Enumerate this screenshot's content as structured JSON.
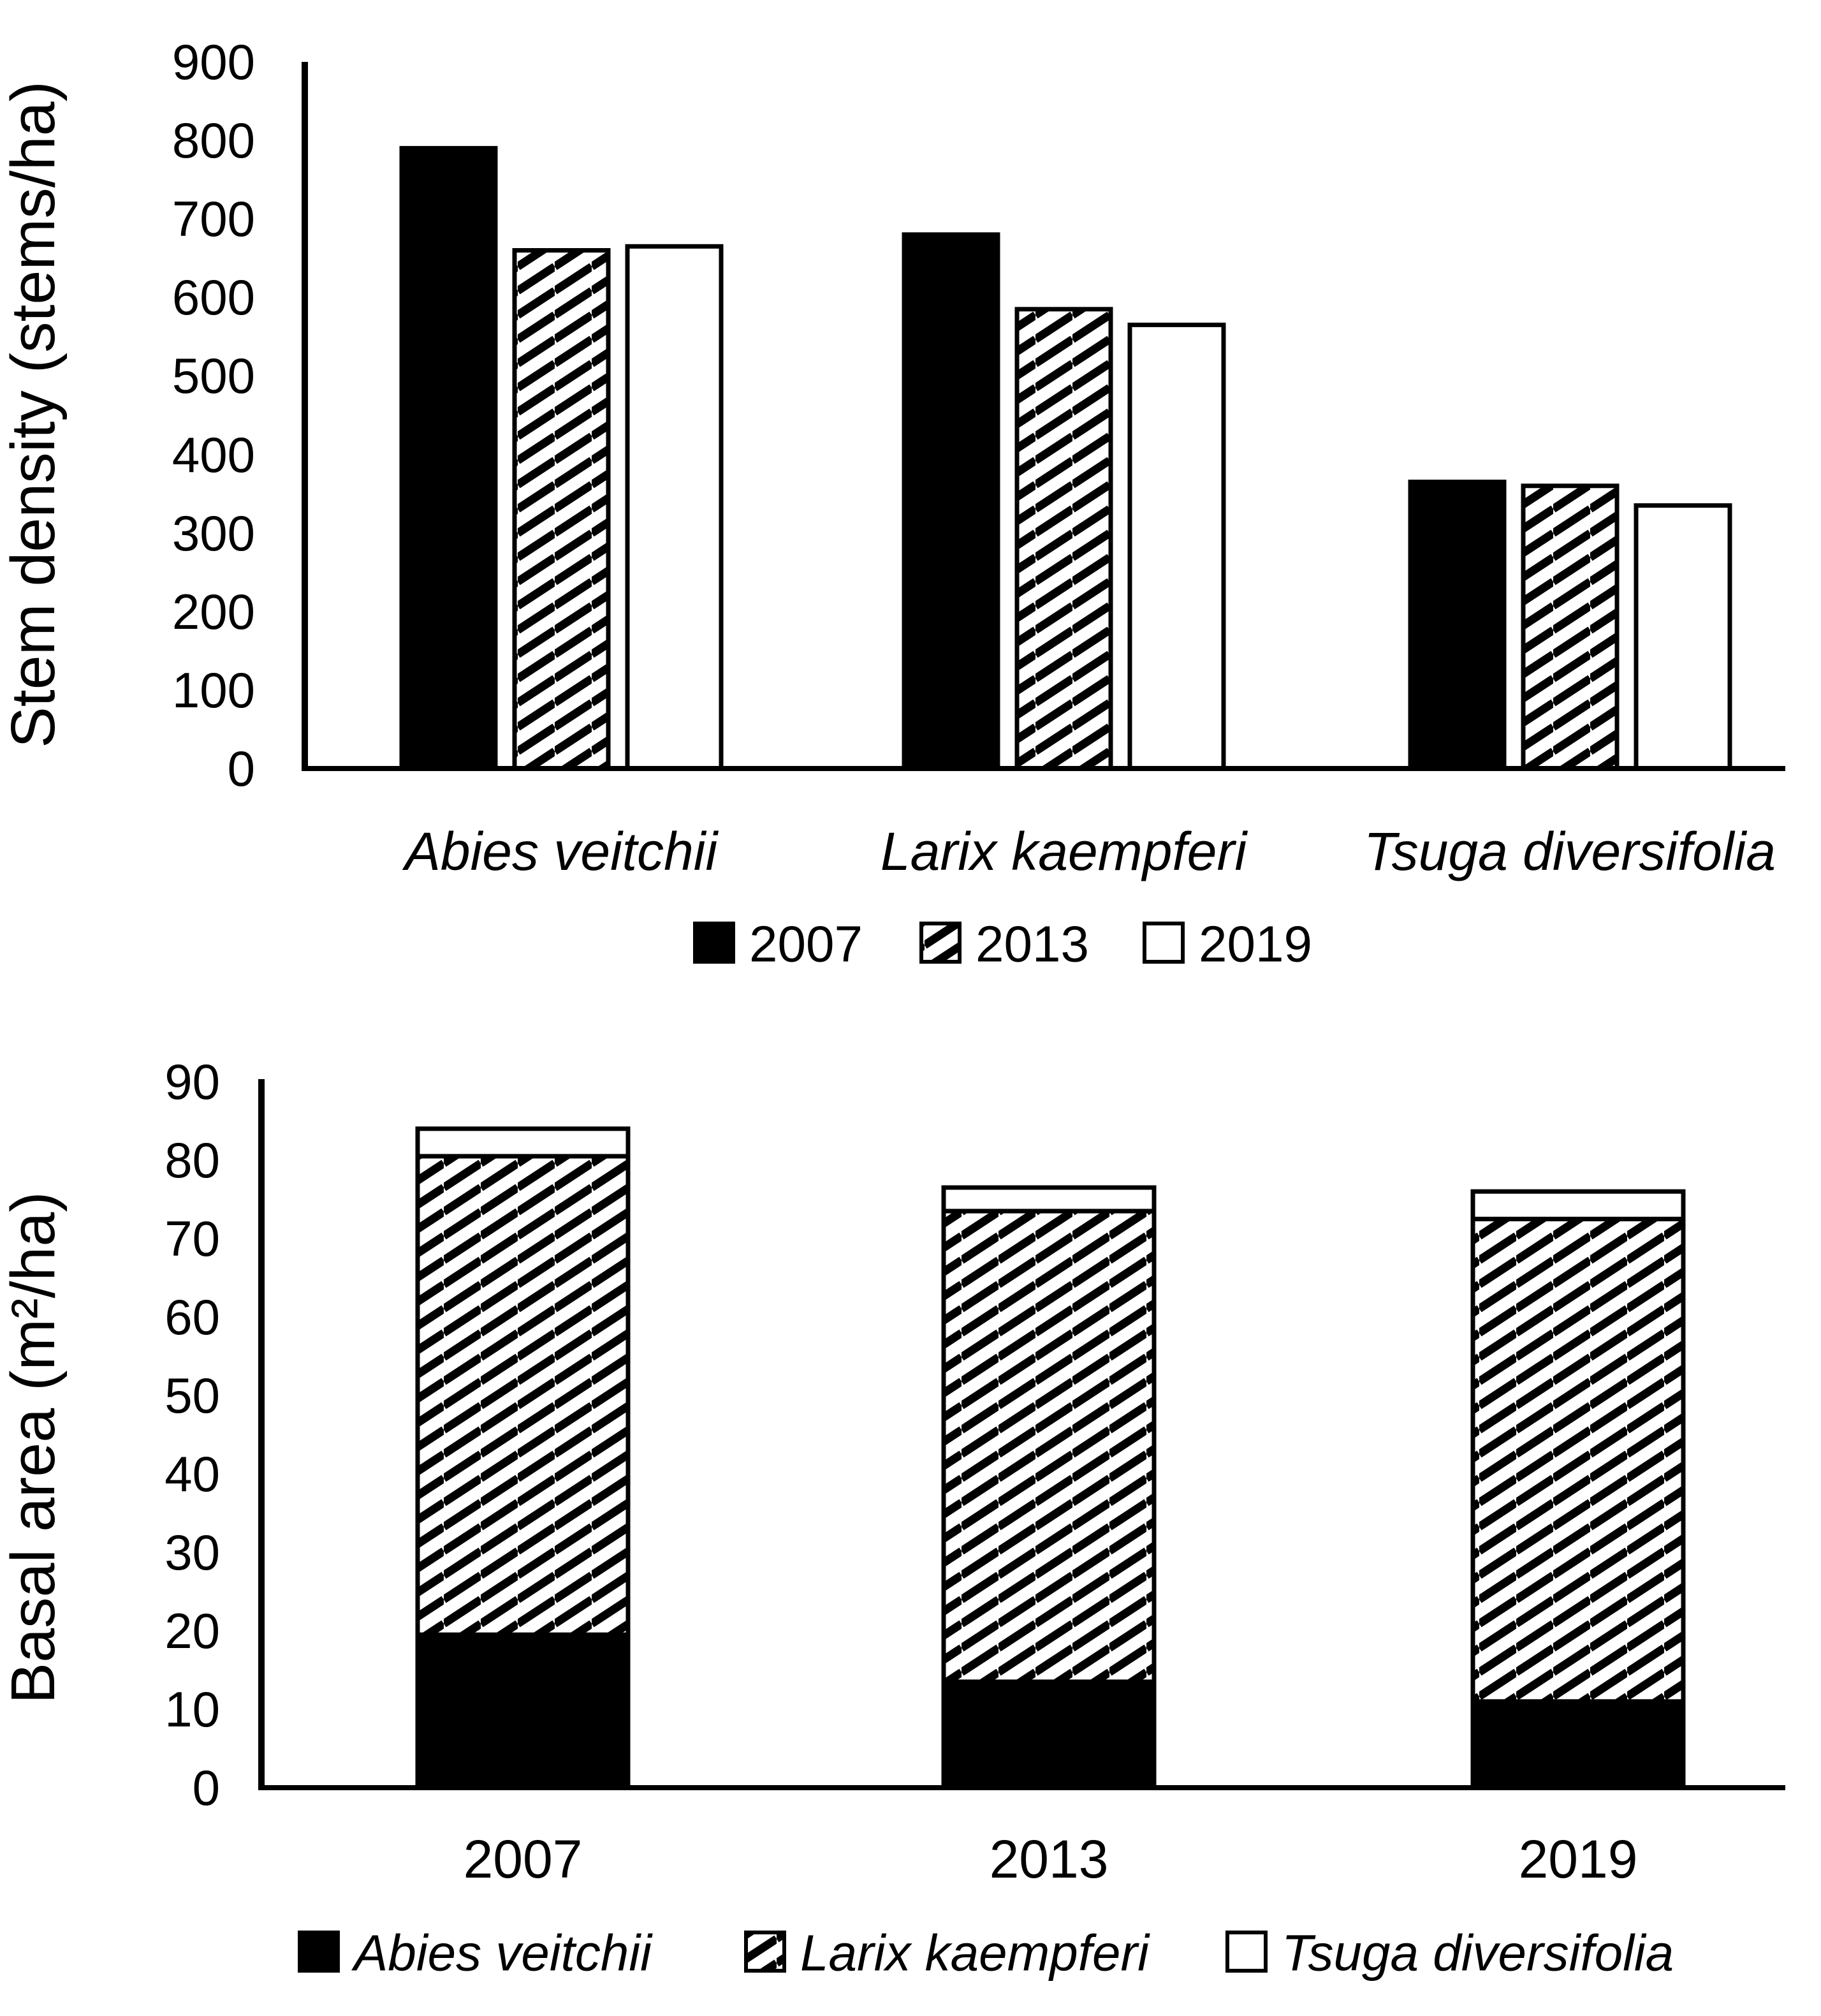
{
  "figure_background": "#ffffff",
  "colors": {
    "bar_fill_black": "#000000",
    "bar_fill_white": "#ffffff",
    "bar_outline": "#000000",
    "text": "#000000"
  },
  "chart_data": [
    {
      "type": "bar",
      "title": "",
      "ylabel": "Stem density (stems/ha)",
      "xlabel": "",
      "ylim": [
        0,
        900
      ],
      "yticks": [
        0,
        100,
        200,
        300,
        400,
        500,
        600,
        700,
        800,
        900
      ],
      "grid": false,
      "legend_position": "bottom",
      "categories": [
        "Abies veitchii",
        "Larix kaempferi",
        "Tsuga diversifolia"
      ],
      "series": [
        {
          "name": "2007",
          "pattern": "solid-black",
          "values": [
            790,
            680,
            365
          ]
        },
        {
          "name": "2013",
          "pattern": "diagonal-hatch",
          "values": [
            660,
            585,
            360
          ]
        },
        {
          "name": "2019",
          "pattern": "open-white",
          "values": [
            665,
            565,
            335
          ]
        }
      ]
    },
    {
      "type": "stacked-bar",
      "title": "",
      "ylabel": "Basal area (m²/ha)",
      "xlabel": "",
      "ylim": [
        0,
        90
      ],
      "yticks": [
        0,
        10,
        20,
        30,
        40,
        50,
        60,
        70,
        80,
        90
      ],
      "grid": false,
      "legend_position": "bottom",
      "categories": [
        "2007",
        "2013",
        "2019"
      ],
      "series": [
        {
          "name": "Abies veitchii",
          "pattern": "solid-black",
          "values": [
            19.5,
            13.5,
            11
          ]
        },
        {
          "name": "Larix kaempferi",
          "pattern": "diagonal-hatch",
          "values": [
            61,
            60,
            61.5
          ]
        },
        {
          "name": "Tsuga diversifolia",
          "pattern": "open-white",
          "values": [
            3.5,
            3,
            3.5
          ]
        }
      ],
      "stack_totals": [
        84,
        76.5,
        76
      ]
    }
  ]
}
